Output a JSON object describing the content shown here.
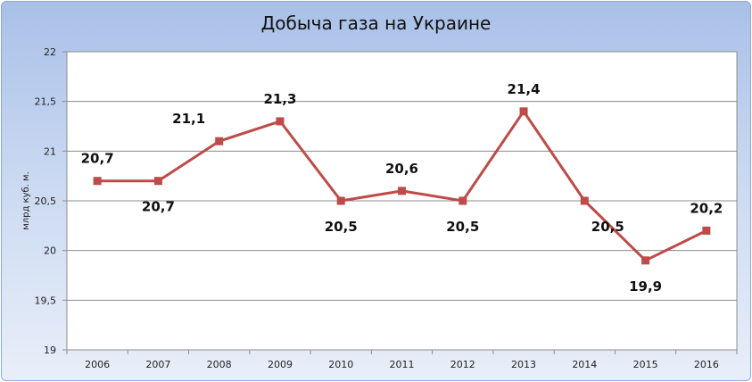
{
  "chart_data": {
    "type": "line",
    "title": "Добыча газа на Украине",
    "xlabel": "",
    "ylabel": "млрд куб. м.",
    "categories": [
      "2006",
      "2007",
      "2008",
      "2009",
      "2010",
      "2011",
      "2012",
      "2013",
      "2014",
      "2015",
      "2016"
    ],
    "series": [
      {
        "values": [
          20.7,
          20.7,
          21.1,
          21.3,
          20.5,
          20.6,
          20.5,
          21.4,
          20.5,
          19.9,
          20.2
        ]
      }
    ],
    "data_labels": [
      "20,7",
      "20,7",
      "21,1",
      "21,3",
      "20,5",
      "20,6",
      "20,5",
      "21,4",
      "20,5",
      "19,9",
      "20,2"
    ],
    "y_ticks": [
      19,
      19.5,
      20,
      20.5,
      21,
      21.5,
      22
    ],
    "y_tick_labels": [
      "19",
      "19,5",
      "20",
      "20,5",
      "21",
      "21,5",
      "22"
    ],
    "ylim": [
      19,
      22
    ],
    "grid": true,
    "legend": "none",
    "colors": {
      "series": "#be4b48",
      "grid": "#8c8c8c",
      "plot_bg": "#ffffff",
      "frame": "#8ea9d6"
    },
    "marker": "square"
  }
}
